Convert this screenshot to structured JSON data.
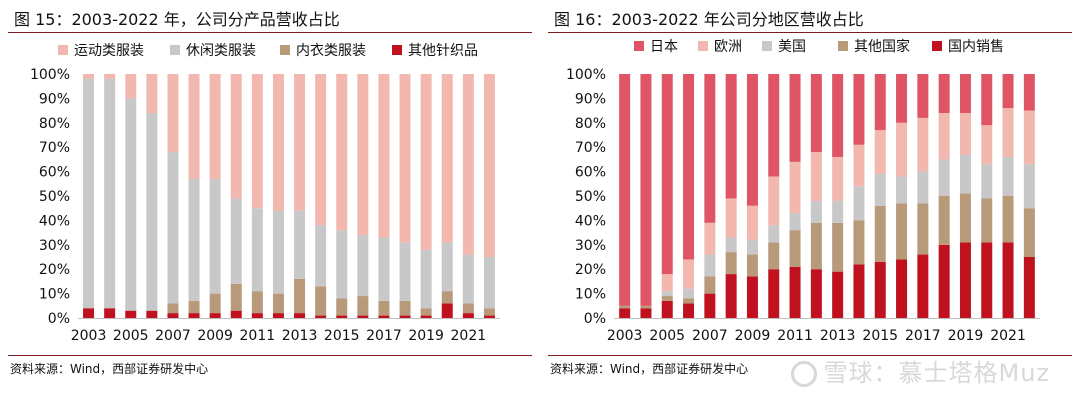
{
  "left": {
    "title": "图 15：2003-2022 年，公司分产品营收占比",
    "source": "资料来源：Wind，西部证券研发中心"
  },
  "right": {
    "title": "图 16：2003-2022 年公司分地区营收占比",
    "source": "资料来源：Wind，西部证券研发中心"
  },
  "watermark": "雪球：慕士塔格Muz",
  "chart_data": [
    {
      "type": "bar",
      "stacked": true,
      "title": "图 15：2003-2022 年，公司分产品营收占比",
      "categories": [
        "2003",
        "2004",
        "2005",
        "2006",
        "2007",
        "2008",
        "2009",
        "2010",
        "2011",
        "2012",
        "2013",
        "2014",
        "2015",
        "2016",
        "2017",
        "2018",
        "2019",
        "2020",
        "2021",
        "2022"
      ],
      "x_tick_labels": [
        "2003",
        "2005",
        "2007",
        "2009",
        "2011",
        "2013",
        "2015",
        "2017",
        "2019",
        "2021"
      ],
      "y_ticks": [
        "0%",
        "10%",
        "20%",
        "30%",
        "40%",
        "50%",
        "60%",
        "70%",
        "80%",
        "90%",
        "100%"
      ],
      "ylim": [
        0,
        100
      ],
      "legend_position": "top",
      "series": [
        {
          "name": "其他针织品",
          "color": "#c0111f",
          "values": [
            4,
            4,
            3,
            3,
            2,
            2,
            2,
            3,
            2,
            2,
            2,
            1,
            1,
            1,
            1,
            1,
            1,
            6,
            2,
            1
          ]
        },
        {
          "name": "内衣类服装",
          "color": "#b8997a",
          "values": [
            0,
            0,
            0,
            0,
            4,
            5,
            8,
            11,
            9,
            8,
            14,
            12,
            7,
            8,
            6,
            6,
            3,
            5,
            4,
            3
          ]
        },
        {
          "name": "休闲类服装",
          "color": "#c8c8c8",
          "values": [
            94,
            94,
            87,
            81,
            62,
            50,
            47,
            35,
            34,
            34,
            28,
            25,
            28,
            25,
            26,
            24,
            24,
            20,
            20,
            21
          ]
        },
        {
          "name": "运动类服装",
          "color": "#f2b8b0",
          "values": [
            2,
            2,
            10,
            16,
            32,
            43,
            43,
            51,
            55,
            56,
            56,
            62,
            64,
            66,
            67,
            69,
            72,
            69,
            74,
            75
          ]
        }
      ]
    },
    {
      "type": "bar",
      "stacked": true,
      "title": "图 16：2003-2022 年公司分地区营收占比",
      "categories": [
        "2003",
        "2004",
        "2005",
        "2006",
        "2007",
        "2008",
        "2009",
        "2010",
        "2011",
        "2012",
        "2013",
        "2014",
        "2015",
        "2016",
        "2017",
        "2018",
        "2019",
        "2020",
        "2021",
        "2022"
      ],
      "x_tick_labels": [
        "2003",
        "2005",
        "2007",
        "2009",
        "2011",
        "2013",
        "2015",
        "2017",
        "2019",
        "2021"
      ],
      "y_ticks": [
        "0%",
        "10%",
        "20%",
        "30%",
        "40%",
        "50%",
        "60%",
        "70%",
        "80%",
        "90%",
        "100%"
      ],
      "ylim": [
        0,
        100
      ],
      "legend_position": "top",
      "series": [
        {
          "name": "国内销售",
          "color": "#c0111f",
          "values": [
            4,
            4,
            7,
            6,
            10,
            18,
            17,
            20,
            21,
            20,
            19,
            22,
            23,
            24,
            26,
            30,
            31,
            31,
            31,
            25
          ]
        },
        {
          "name": "其他国家",
          "color": "#b8997a",
          "values": [
            1,
            1,
            2,
            2,
            7,
            9,
            9,
            11,
            15,
            19,
            20,
            18,
            23,
            23,
            21,
            20,
            20,
            18,
            19,
            20
          ]
        },
        {
          "name": "美国",
          "color": "#c8c8c8",
          "values": [
            0,
            0,
            2,
            4,
            9,
            6,
            6,
            7,
            7,
            9,
            9,
            14,
            13,
            11,
            13,
            15,
            16,
            14,
            16,
            18
          ]
        },
        {
          "name": "欧洲",
          "color": "#f2b8b0",
          "values": [
            0,
            0,
            7,
            12,
            13,
            16,
            14,
            20,
            21,
            20,
            18,
            17,
            18,
            22,
            22,
            19,
            17,
            16,
            20,
            22
          ]
        },
        {
          "name": "日本",
          "color": "#e05565",
          "values": [
            95,
            95,
            82,
            76,
            61,
            51,
            54,
            42,
            36,
            32,
            34,
            29,
            23,
            20,
            18,
            16,
            16,
            21,
            14,
            15
          ]
        }
      ]
    }
  ]
}
